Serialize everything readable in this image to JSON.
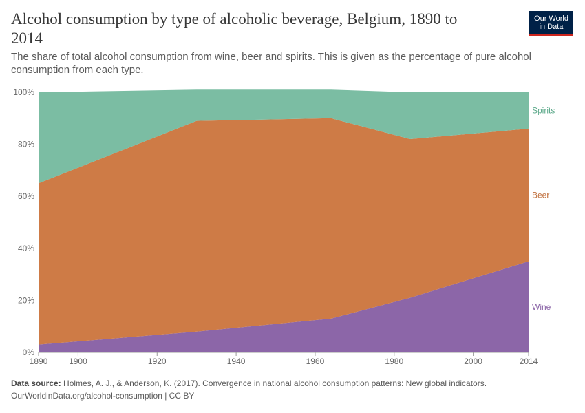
{
  "header": {
    "title": "Alcohol consumption by type of alcoholic beverage, Belgium, 1890 to 2014",
    "subtitle": "The share of total alcohol consumption from wine, beer and spirits. This is given as the percentage of pure alcohol consumption from each type."
  },
  "logo": {
    "line1": "Our World",
    "line2": "in Data"
  },
  "footer": {
    "source_label": "Data source:",
    "source_text": "Holmes, A. J., & Anderson, K. (2017). Convergence in national alcohol consumption patterns: New global indicators.",
    "url_text": "OurWorldinData.org/alcohol-consumption | CC BY"
  },
  "chart_data": {
    "type": "area",
    "stacked": true,
    "x": [
      1890,
      1930,
      1964,
      1984,
      2014
    ],
    "series": [
      {
        "name": "Wine",
        "color": "#8c66a8",
        "values": [
          3,
          8,
          13,
          21,
          35
        ]
      },
      {
        "name": "Beer",
        "color": "#ce7b46",
        "values": [
          62,
          81,
          77,
          61,
          51
        ]
      },
      {
        "name": "Spirits",
        "color": "#7bbda3",
        "values": [
          35,
          12,
          11,
          18,
          14
        ]
      }
    ],
    "xlim": [
      1890,
      2014
    ],
    "ylim": [
      0,
      100
    ],
    "x_ticks": [
      1890,
      1900,
      1920,
      1940,
      1960,
      1980,
      2000,
      2014
    ],
    "y_ticks": [
      "0%",
      "20%",
      "40%",
      "60%",
      "80%",
      "100%"
    ],
    "y_tick_values": [
      0,
      20,
      40,
      60,
      80,
      100
    ],
    "grid": "horizontal-dashed",
    "legend": "right, inline labels",
    "label_colors": {
      "Wine": "#8c66a8",
      "Beer": "#be6a35",
      "Spirits": "#5ca98a"
    }
  }
}
